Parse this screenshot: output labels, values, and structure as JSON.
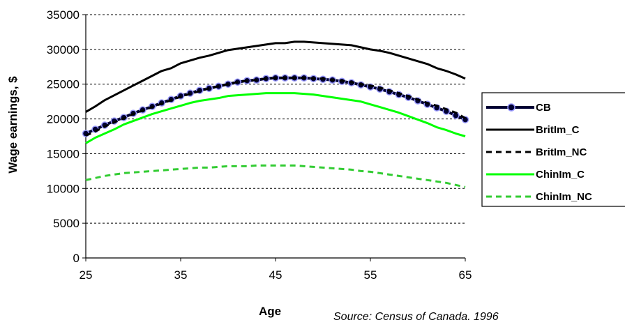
{
  "chart_data": {
    "type": "line",
    "title": "",
    "xlabel": "Age",
    "ylabel": "Wage earnings, $",
    "xlim": [
      25,
      65
    ],
    "ylim": [
      0,
      35000
    ],
    "xticks": [
      25,
      35,
      45,
      55,
      65
    ],
    "yticks": [
      0,
      5000,
      10000,
      15000,
      20000,
      25000,
      30000,
      35000
    ],
    "grid": "horizontal dotted",
    "legend_position": "right",
    "source_note": "Source: Census of Canada, 1996",
    "series": [
      {
        "name": "CB",
        "color": "#000033",
        "style": "solid-markers",
        "x": [
          25,
          26,
          27,
          28,
          29,
          30,
          31,
          32,
          33,
          34,
          35,
          36,
          37,
          38,
          39,
          40,
          41,
          42,
          43,
          44,
          45,
          46,
          47,
          48,
          49,
          50,
          51,
          52,
          53,
          54,
          55,
          56,
          57,
          58,
          59,
          60,
          61,
          62,
          63,
          64,
          65
        ],
        "values": [
          17900,
          18500,
          19100,
          19700,
          20200,
          20800,
          21300,
          21800,
          22300,
          22800,
          23300,
          23700,
          24100,
          24400,
          24700,
          25000,
          25300,
          25500,
          25600,
          25800,
          25900,
          25900,
          25900,
          25900,
          25800,
          25700,
          25600,
          25400,
          25200,
          24900,
          24600,
          24300,
          23900,
          23500,
          23100,
          22600,
          22100,
          21600,
          21100,
          20500,
          19900
        ]
      },
      {
        "name": "BritIm_C",
        "color": "#000000",
        "style": "solid",
        "x": [
          25,
          26,
          27,
          28,
          29,
          30,
          31,
          32,
          33,
          34,
          35,
          36,
          37,
          38,
          39,
          40,
          41,
          42,
          43,
          44,
          45,
          46,
          47,
          48,
          49,
          50,
          51,
          52,
          53,
          54,
          55,
          56,
          57,
          58,
          59,
          60,
          61,
          62,
          63,
          64,
          65
        ],
        "values": [
          21000,
          21800,
          22700,
          23400,
          24100,
          24800,
          25500,
          26200,
          26900,
          27300,
          28000,
          28400,
          28800,
          29100,
          29500,
          29900,
          30100,
          30300,
          30500,
          30700,
          30900,
          30900,
          31100,
          31100,
          31000,
          30900,
          30800,
          30700,
          30600,
          30300,
          30000,
          29800,
          29500,
          29100,
          28700,
          28300,
          27900,
          27300,
          26900,
          26400,
          25800
        ]
      },
      {
        "name": "BritIm_NC",
        "color": "#000000",
        "style": "dashed",
        "x": [
          25,
          26,
          27,
          28,
          29,
          30,
          31,
          32,
          33,
          34,
          35,
          36,
          37,
          38,
          39,
          40,
          41,
          42,
          43,
          44,
          45,
          46,
          47,
          48,
          49,
          50,
          51,
          52,
          53,
          54,
          55,
          56,
          57,
          58,
          59,
          60,
          61,
          62,
          63,
          64,
          65
        ],
        "values": [
          17600,
          18200,
          18900,
          19500,
          20100,
          20700,
          21200,
          21700,
          22200,
          22700,
          23200,
          23600,
          24000,
          24400,
          24700,
          25000,
          25300,
          25500,
          25600,
          25800,
          25900,
          25900,
          25900,
          25900,
          25800,
          25800,
          25600,
          25500,
          25300,
          25000,
          24800,
          24500,
          24100,
          23700,
          23300,
          22800,
          22300,
          21900,
          21400,
          20900,
          20100
        ]
      },
      {
        "name": "ChinIm_C",
        "color": "#00ff00",
        "style": "solid",
        "x": [
          25,
          26,
          27,
          28,
          29,
          30,
          31,
          32,
          33,
          34,
          35,
          36,
          37,
          38,
          39,
          40,
          41,
          42,
          43,
          44,
          45,
          46,
          47,
          48,
          49,
          50,
          51,
          52,
          53,
          54,
          55,
          56,
          57,
          58,
          59,
          60,
          61,
          62,
          63,
          64,
          65
        ],
        "values": [
          16500,
          17300,
          17900,
          18500,
          19200,
          19700,
          20200,
          20700,
          21100,
          21500,
          21900,
          22300,
          22600,
          22800,
          23000,
          23300,
          23400,
          23500,
          23600,
          23700,
          23700,
          23700,
          23700,
          23600,
          23500,
          23300,
          23100,
          22900,
          22700,
          22500,
          22100,
          21700,
          21300,
          20900,
          20400,
          19900,
          19400,
          18800,
          18400,
          17900,
          17500
        ]
      },
      {
        "name": "ChinIm_NC",
        "color": "#33cc33",
        "style": "dashed",
        "x": [
          25,
          26,
          27,
          28,
          29,
          30,
          31,
          32,
          33,
          34,
          35,
          36,
          37,
          38,
          39,
          40,
          41,
          42,
          43,
          44,
          45,
          46,
          47,
          48,
          49,
          50,
          51,
          52,
          53,
          54,
          55,
          56,
          57,
          58,
          59,
          60,
          61,
          62,
          63,
          64,
          65
        ],
        "values": [
          11200,
          11500,
          11800,
          12000,
          12200,
          12300,
          12400,
          12500,
          12600,
          12700,
          12800,
          12900,
          13000,
          13000,
          13100,
          13200,
          13200,
          13200,
          13300,
          13300,
          13300,
          13300,
          13300,
          13200,
          13100,
          13000,
          12900,
          12800,
          12700,
          12500,
          12400,
          12200,
          12000,
          11800,
          11600,
          11400,
          11200,
          11000,
          10800,
          10500,
          10200
        ]
      }
    ]
  }
}
